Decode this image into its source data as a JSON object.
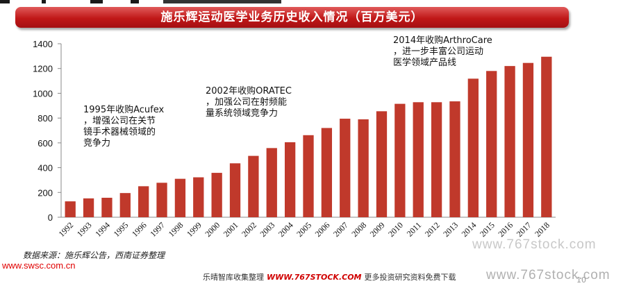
{
  "title": "施乐辉运动医学业务历史收入情况（百万美元）",
  "chart_data": {
    "type": "bar",
    "title": "施乐辉运动医学业务历史收入情况（百万美元）",
    "categories": [
      "1992",
      "1993",
      "1994",
      "1995",
      "1996",
      "1997",
      "1998",
      "1999",
      "2000",
      "2001",
      "2002",
      "2003",
      "2004",
      "2005",
      "2006",
      "2007",
      "2008",
      "2009",
      "2010",
      "2011",
      "2012",
      "2013",
      "2014",
      "2015",
      "2016",
      "2017",
      "2018"
    ],
    "values": [
      128,
      152,
      157,
      195,
      250,
      278,
      310,
      322,
      358,
      435,
      495,
      558,
      605,
      662,
      720,
      795,
      790,
      855,
      915,
      928,
      928,
      935,
      1118,
      1180,
      1220,
      1245,
      1295
    ],
    "ylim": [
      0,
      1400
    ],
    "yticks": [
      0,
      200,
      400,
      600,
      800,
      1000,
      1200,
      1400
    ],
    "bar_color": "#c0392b",
    "grid": false,
    "annotations": [
      {
        "lines": [
          "1995年收购Acufex",
          "，增强公司在关节",
          "镜手术器械领域的",
          "竞争力"
        ]
      },
      {
        "lines": [
          "2002年收购ORATEC",
          "，加强公司在射频能",
          "量系统领域竞争力"
        ]
      },
      {
        "lines": [
          "2014年收购ArthroCare",
          "，进一步丰富公司运动",
          "医学领域产品线"
        ]
      }
    ]
  },
  "source": "数据来源：施乐辉公告，西南证券整理",
  "site_left": "www.swsc.com.cn",
  "footer": {
    "left": "乐晴智库收集整理",
    "mid": "WWW.767STOCK.COM",
    "right": "更多投资研究资料免费下载"
  },
  "watermark_1": "www.767stock.com",
  "watermark_2": "www.767stock.com",
  "page_number": "10"
}
